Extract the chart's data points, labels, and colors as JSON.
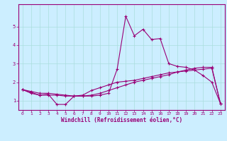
{
  "title": "",
  "xlabel": "Windchill (Refroidissement éolien,°C)",
  "background_color": "#cceeff",
  "grid_color": "#aadddd",
  "line_color": "#990077",
  "xlim": [
    -0.5,
    23.5
  ],
  "ylim": [
    0.5,
    6.2
  ],
  "yticks": [
    1,
    2,
    3,
    4,
    5
  ],
  "xticks": [
    0,
    1,
    2,
    3,
    4,
    5,
    6,
    7,
    8,
    9,
    10,
    11,
    12,
    13,
    14,
    15,
    16,
    17,
    18,
    19,
    20,
    21,
    22,
    23
  ],
  "line1_x": [
    0,
    1,
    2,
    3,
    4,
    5,
    6,
    7,
    8,
    9,
    10,
    11,
    12,
    13,
    14,
    15,
    16,
    17,
    18,
    19,
    20,
    21,
    22,
    23
  ],
  "line1_y": [
    1.6,
    1.4,
    1.3,
    1.35,
    0.8,
    0.8,
    1.25,
    1.25,
    1.25,
    1.3,
    1.4,
    2.7,
    5.55,
    4.5,
    4.85,
    4.3,
    4.35,
    3.0,
    2.85,
    2.8,
    2.65,
    2.35,
    2.0,
    0.85
  ],
  "line2_x": [
    0,
    1,
    2,
    3,
    4,
    5,
    6,
    7,
    8,
    9,
    10,
    11,
    12,
    13,
    14,
    15,
    16,
    17,
    18,
    19,
    20,
    21,
    22,
    23
  ],
  "line2_y": [
    1.6,
    1.45,
    1.3,
    1.3,
    1.3,
    1.25,
    1.25,
    1.3,
    1.55,
    1.7,
    1.85,
    2.0,
    2.05,
    2.1,
    2.2,
    2.3,
    2.4,
    2.5,
    2.55,
    2.6,
    2.65,
    2.7,
    2.75,
    0.85
  ],
  "line3_x": [
    0,
    1,
    2,
    3,
    4,
    5,
    6,
    7,
    8,
    9,
    10,
    11,
    12,
    13,
    14,
    15,
    16,
    17,
    18,
    19,
    20,
    21,
    22,
    23
  ],
  "line3_y": [
    1.6,
    1.5,
    1.4,
    1.4,
    1.35,
    1.3,
    1.25,
    1.25,
    1.3,
    1.4,
    1.55,
    1.7,
    1.85,
    2.0,
    2.1,
    2.2,
    2.3,
    2.4,
    2.55,
    2.65,
    2.75,
    2.8,
    2.8,
    0.85
  ],
  "label_fontsize": 4.5,
  "xlabel_fontsize": 5.5
}
